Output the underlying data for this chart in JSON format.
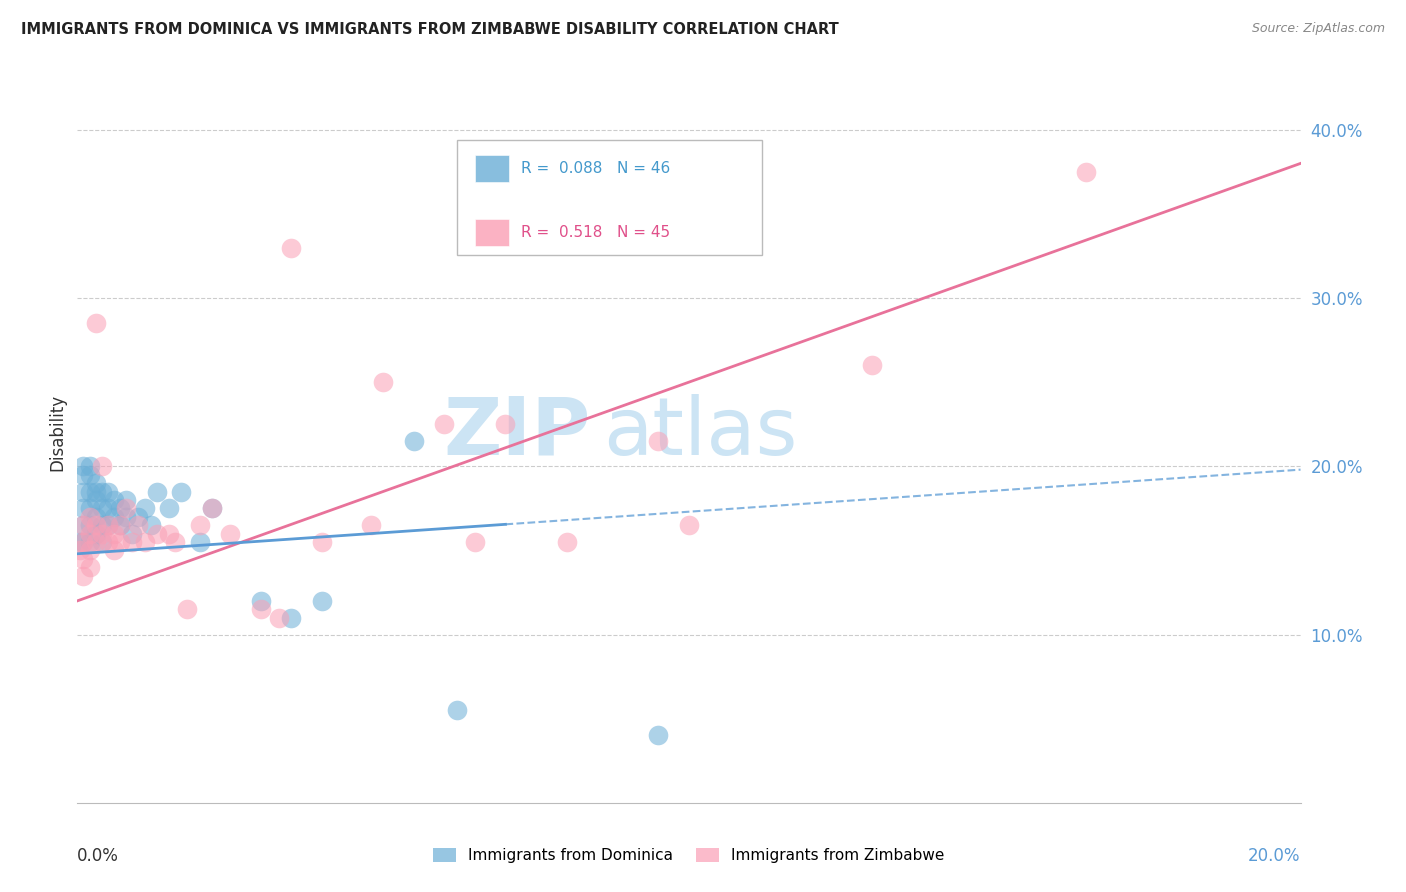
{
  "title": "IMMIGRANTS FROM DOMINICA VS IMMIGRANTS FROM ZIMBABWE DISABILITY CORRELATION CHART",
  "source": "Source: ZipAtlas.com",
  "ylabel": "Disability",
  "y_ticks": [
    0.1,
    0.2,
    0.3,
    0.4
  ],
  "y_tick_labels": [
    "10.0%",
    "20.0%",
    "30.0%",
    "40.0%"
  ],
  "xlim": [
    0.0,
    0.2
  ],
  "ylim": [
    0.0,
    0.44
  ],
  "dominica_color": "#6baed6",
  "zimbabwe_color": "#fa9fb5",
  "dominica_line_color": "#5b9bd5",
  "zimbabwe_line_color": "#e8729a",
  "watermark": "ZIPatlas",
  "watermark_color": "#cce4f4",
  "background_color": "#ffffff",
  "grid_color": "#cccccc",
  "legend_r1": "R =  0.088",
  "legend_n1": "N = 46",
  "legend_r2": "R =  0.518",
  "legend_n2": "N = 45",
  "dominica_x": [
    0.0005,
    0.001,
    0.001,
    0.001,
    0.001,
    0.001,
    0.001,
    0.002,
    0.002,
    0.002,
    0.002,
    0.002,
    0.002,
    0.003,
    0.003,
    0.003,
    0.003,
    0.003,
    0.004,
    0.004,
    0.004,
    0.004,
    0.005,
    0.005,
    0.005,
    0.006,
    0.006,
    0.007,
    0.007,
    0.008,
    0.008,
    0.009,
    0.01,
    0.011,
    0.012,
    0.013,
    0.015,
    0.017,
    0.02,
    0.022,
    0.03,
    0.035,
    0.04,
    0.055,
    0.062,
    0.095
  ],
  "dominica_y": [
    0.155,
    0.2,
    0.195,
    0.185,
    0.175,
    0.165,
    0.155,
    0.2,
    0.195,
    0.185,
    0.175,
    0.165,
    0.155,
    0.19,
    0.185,
    0.18,
    0.17,
    0.16,
    0.185,
    0.175,
    0.165,
    0.155,
    0.185,
    0.175,
    0.165,
    0.18,
    0.17,
    0.175,
    0.165,
    0.18,
    0.17,
    0.16,
    0.17,
    0.175,
    0.165,
    0.185,
    0.175,
    0.185,
    0.155,
    0.175,
    0.12,
    0.11,
    0.12,
    0.215,
    0.055,
    0.04
  ],
  "zimbabwe_x": [
    0.0005,
    0.001,
    0.001,
    0.001,
    0.001,
    0.002,
    0.002,
    0.002,
    0.002,
    0.003,
    0.003,
    0.003,
    0.004,
    0.004,
    0.005,
    0.005,
    0.006,
    0.006,
    0.007,
    0.007,
    0.008,
    0.009,
    0.01,
    0.011,
    0.013,
    0.015,
    0.016,
    0.018,
    0.02,
    0.022,
    0.025,
    0.03,
    0.033,
    0.04,
    0.048,
    0.06,
    0.07,
    0.08,
    0.095,
    0.1,
    0.13,
    0.035,
    0.05,
    0.065,
    0.165
  ],
  "zimbabwe_y": [
    0.15,
    0.155,
    0.145,
    0.135,
    0.165,
    0.16,
    0.15,
    0.14,
    0.17,
    0.155,
    0.285,
    0.165,
    0.2,
    0.16,
    0.155,
    0.165,
    0.16,
    0.15,
    0.155,
    0.165,
    0.175,
    0.155,
    0.165,
    0.155,
    0.16,
    0.16,
    0.155,
    0.115,
    0.165,
    0.175,
    0.16,
    0.115,
    0.11,
    0.155,
    0.165,
    0.225,
    0.225,
    0.155,
    0.215,
    0.165,
    0.26,
    0.33,
    0.25,
    0.155,
    0.375
  ]
}
